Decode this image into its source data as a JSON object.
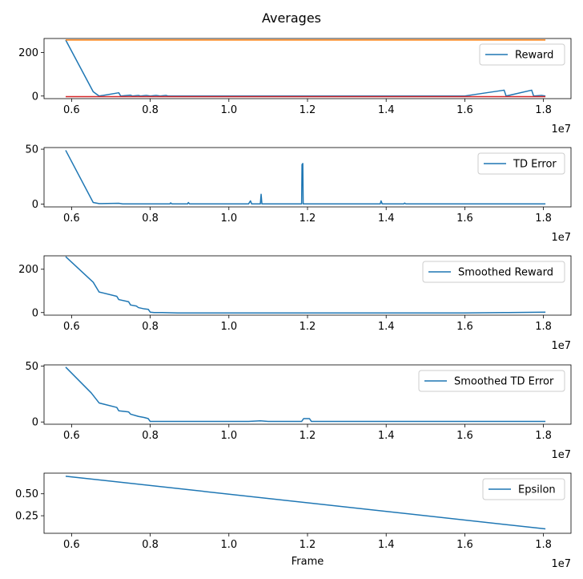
{
  "figure": {
    "title": "Averages"
  },
  "colors": {
    "primary": "#1f77b4",
    "orange": "#ff7f0e",
    "red": "#d62728"
  },
  "chart_data": [
    {
      "type": "line",
      "legend": "top-right",
      "xlim": [
        5300000,
        18700000
      ],
      "ylim": [
        -12,
        265
      ],
      "yticks": [
        0,
        200
      ],
      "xticks": [
        6000000,
        8000000,
        10000000,
        12000000,
        14000000,
        16000000,
        18000000
      ],
      "xtick_labels": [
        "0.6",
        "0.8",
        "1.0",
        "1.2",
        "1.4",
        "1.6",
        "1.8"
      ],
      "offset_text": "1e7",
      "xlabel": "",
      "series": [
        {
          "name": "Reward",
          "color": "#1f77b4",
          "points": [
            [
              5850000,
              258
            ],
            [
              6550000,
              20
            ],
            [
              6700000,
              0
            ],
            [
              7200000,
              15
            ],
            [
              7250000,
              0
            ],
            [
              7500000,
              4
            ],
            [
              7550000,
              0
            ],
            [
              7700000,
              3
            ],
            [
              7750000,
              0
            ],
            [
              7900000,
              3
            ],
            [
              8000000,
              0
            ],
            [
              8150000,
              3
            ],
            [
              8250000,
              0
            ],
            [
              8400000,
              3
            ],
            [
              8450000,
              0
            ],
            [
              16000000,
              0
            ],
            [
              16100000,
              3
            ],
            [
              17000000,
              27
            ],
            [
              17050000,
              0
            ],
            [
              17700000,
              27
            ],
            [
              17750000,
              0
            ],
            [
              17950000,
              3
            ],
            [
              18050000,
              0
            ]
          ]
        },
        {
          "color": "#ff7f0e",
          "points": [
            [
              5850000,
              258
            ],
            [
              18050000,
              258
            ]
          ]
        },
        {
          "color": "#d62728",
          "points": [
            [
              5850000,
              -3
            ],
            [
              18050000,
              -3
            ]
          ]
        }
      ]
    },
    {
      "type": "line",
      "legend": "top-right",
      "xlim": [
        5300000,
        18700000
      ],
      "ylim": [
        -2.5,
        51.5
      ],
      "yticks": [
        0,
        50
      ],
      "xticks": [
        6000000,
        8000000,
        10000000,
        12000000,
        14000000,
        16000000,
        18000000
      ],
      "xtick_labels": [
        "0.6",
        "0.8",
        "1.0",
        "1.2",
        "1.4",
        "1.6",
        "1.8"
      ],
      "offset_text": "1e7",
      "xlabel": "",
      "series": [
        {
          "name": "TD Error",
          "color": "#1f77b4",
          "points": [
            [
              5850000,
              49
            ],
            [
              6550000,
              1.5
            ],
            [
              6700000,
              0.5
            ],
            [
              7200000,
              0.8
            ],
            [
              7300000,
              0.2
            ],
            [
              8500000,
              0.2
            ],
            [
              8520000,
              1.2
            ],
            [
              8550000,
              0.2
            ],
            [
              8950000,
              0.2
            ],
            [
              8970000,
              1.5
            ],
            [
              9000000,
              0.2
            ],
            [
              10500000,
              0.2
            ],
            [
              10550000,
              3
            ],
            [
              10580000,
              0.2
            ],
            [
              10800000,
              0.2
            ],
            [
              10820000,
              9
            ],
            [
              10840000,
              0.2
            ],
            [
              11850000,
              0.2
            ],
            [
              11860000,
              36
            ],
            [
              11880000,
              37
            ],
            [
              11890000,
              0.2
            ],
            [
              13850000,
              0.2
            ],
            [
              13870000,
              3
            ],
            [
              13900000,
              0.2
            ],
            [
              14450000,
              0.2
            ],
            [
              14470000,
              1
            ],
            [
              14500000,
              0.2
            ],
            [
              18050000,
              0.2
            ]
          ]
        }
      ]
    },
    {
      "type": "line",
      "legend": "top-right",
      "xlim": [
        5300000,
        18700000
      ],
      "ylim": [
        -12,
        262
      ],
      "yticks": [
        0,
        200
      ],
      "xticks": [
        6000000,
        8000000,
        10000000,
        12000000,
        14000000,
        16000000,
        18000000
      ],
      "xtick_labels": [
        "0.6",
        "0.8",
        "1.0",
        "1.2",
        "1.4",
        "1.6",
        "1.8"
      ],
      "offset_text": "1e7",
      "xlabel": "",
      "series": [
        {
          "name": "Smoothed Reward",
          "color": "#1f77b4",
          "points": [
            [
              5850000,
              258
            ],
            [
              6550000,
              140
            ],
            [
              6700000,
              95
            ],
            [
              7150000,
              75
            ],
            [
              7200000,
              60
            ],
            [
              7450000,
              50
            ],
            [
              7500000,
              35
            ],
            [
              7650000,
              30
            ],
            [
              7700000,
              23
            ],
            [
              7850000,
              17
            ],
            [
              7950000,
              15
            ],
            [
              8000000,
              2
            ],
            [
              8100000,
              0
            ],
            [
              8300000,
              0
            ],
            [
              8700000,
              -2
            ],
            [
              16000000,
              -2
            ],
            [
              17000000,
              0
            ],
            [
              18050000,
              2
            ]
          ]
        }
      ]
    },
    {
      "type": "line",
      "legend": "top-right",
      "xlim": [
        5300000,
        18700000
      ],
      "ylim": [
        -2,
        51
      ],
      "yticks": [
        0,
        50
      ],
      "xticks": [
        6000000,
        8000000,
        10000000,
        12000000,
        14000000,
        16000000,
        18000000
      ],
      "xtick_labels": [
        "0.6",
        "0.8",
        "1.0",
        "1.2",
        "1.4",
        "1.6",
        "1.8"
      ],
      "offset_text": "1e7",
      "xlabel": "",
      "series": [
        {
          "name": "Smoothed TD Error",
          "color": "#1f77b4",
          "points": [
            [
              5850000,
              49
            ],
            [
              6500000,
              26
            ],
            [
              6700000,
              17
            ],
            [
              7150000,
              13
            ],
            [
              7200000,
              10
            ],
            [
              7450000,
              9
            ],
            [
              7500000,
              7
            ],
            [
              7700000,
              5
            ],
            [
              7850000,
              4
            ],
            [
              7950000,
              3
            ],
            [
              8000000,
              0.5
            ],
            [
              10500000,
              0.5
            ],
            [
              10800000,
              1
            ],
            [
              11000000,
              0.5
            ],
            [
              11850000,
              0.5
            ],
            [
              11900000,
              3
            ],
            [
              12050000,
              3
            ],
            [
              12100000,
              0.5
            ],
            [
              18050000,
              0.5
            ]
          ]
        }
      ]
    },
    {
      "type": "line",
      "legend": "top-right",
      "xlim": [
        5300000,
        18700000
      ],
      "ylim": [
        0.05,
        0.735
      ],
      "yticks": [
        0.25,
        0.5
      ],
      "ytick_labels": [
        "0.25",
        "0.50"
      ],
      "xticks": [
        6000000,
        8000000,
        10000000,
        12000000,
        14000000,
        16000000,
        18000000
      ],
      "xtick_labels": [
        "0.6",
        "0.8",
        "1.0",
        "1.2",
        "1.4",
        "1.6",
        "1.8"
      ],
      "offset_text": "1e7",
      "xlabel": "Frame",
      "series": [
        {
          "name": "Epsilon",
          "color": "#1f77b4",
          "points": [
            [
              5850000,
              0.7
            ],
            [
              18050000,
              0.1
            ]
          ]
        }
      ]
    }
  ]
}
